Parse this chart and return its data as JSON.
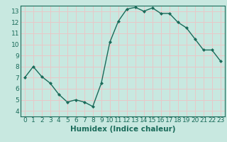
{
  "x": [
    0,
    1,
    2,
    3,
    4,
    5,
    6,
    7,
    8,
    9,
    10,
    11,
    12,
    13,
    14,
    15,
    16,
    17,
    18,
    19,
    20,
    21,
    22,
    23
  ],
  "y": [
    7.0,
    8.0,
    7.1,
    6.5,
    5.5,
    4.8,
    5.0,
    4.8,
    4.4,
    6.5,
    10.2,
    12.1,
    13.2,
    13.35,
    13.0,
    13.3,
    12.8,
    12.8,
    12.0,
    11.5,
    10.5,
    9.5,
    9.5,
    8.5
  ],
  "line_color": "#1a6b5a",
  "marker_color": "#1a6b5a",
  "bg_color": "#c8e8e0",
  "grid_color": "#e8c8c8",
  "xlabel": "Humidex (Indice chaleur)",
  "xlim": [
    -0.5,
    23.5
  ],
  "ylim": [
    3.5,
    13.5
  ],
  "yticks": [
    4,
    5,
    6,
    7,
    8,
    9,
    10,
    11,
    12,
    13
  ],
  "xticks": [
    0,
    1,
    2,
    3,
    4,
    5,
    6,
    7,
    8,
    9,
    10,
    11,
    12,
    13,
    14,
    15,
    16,
    17,
    18,
    19,
    20,
    21,
    22,
    23
  ],
  "tick_label_fontsize": 6.5,
  "xlabel_fontsize": 7.5,
  "label_color": "#1a6b5a",
  "spine_color": "#1a6b5a"
}
